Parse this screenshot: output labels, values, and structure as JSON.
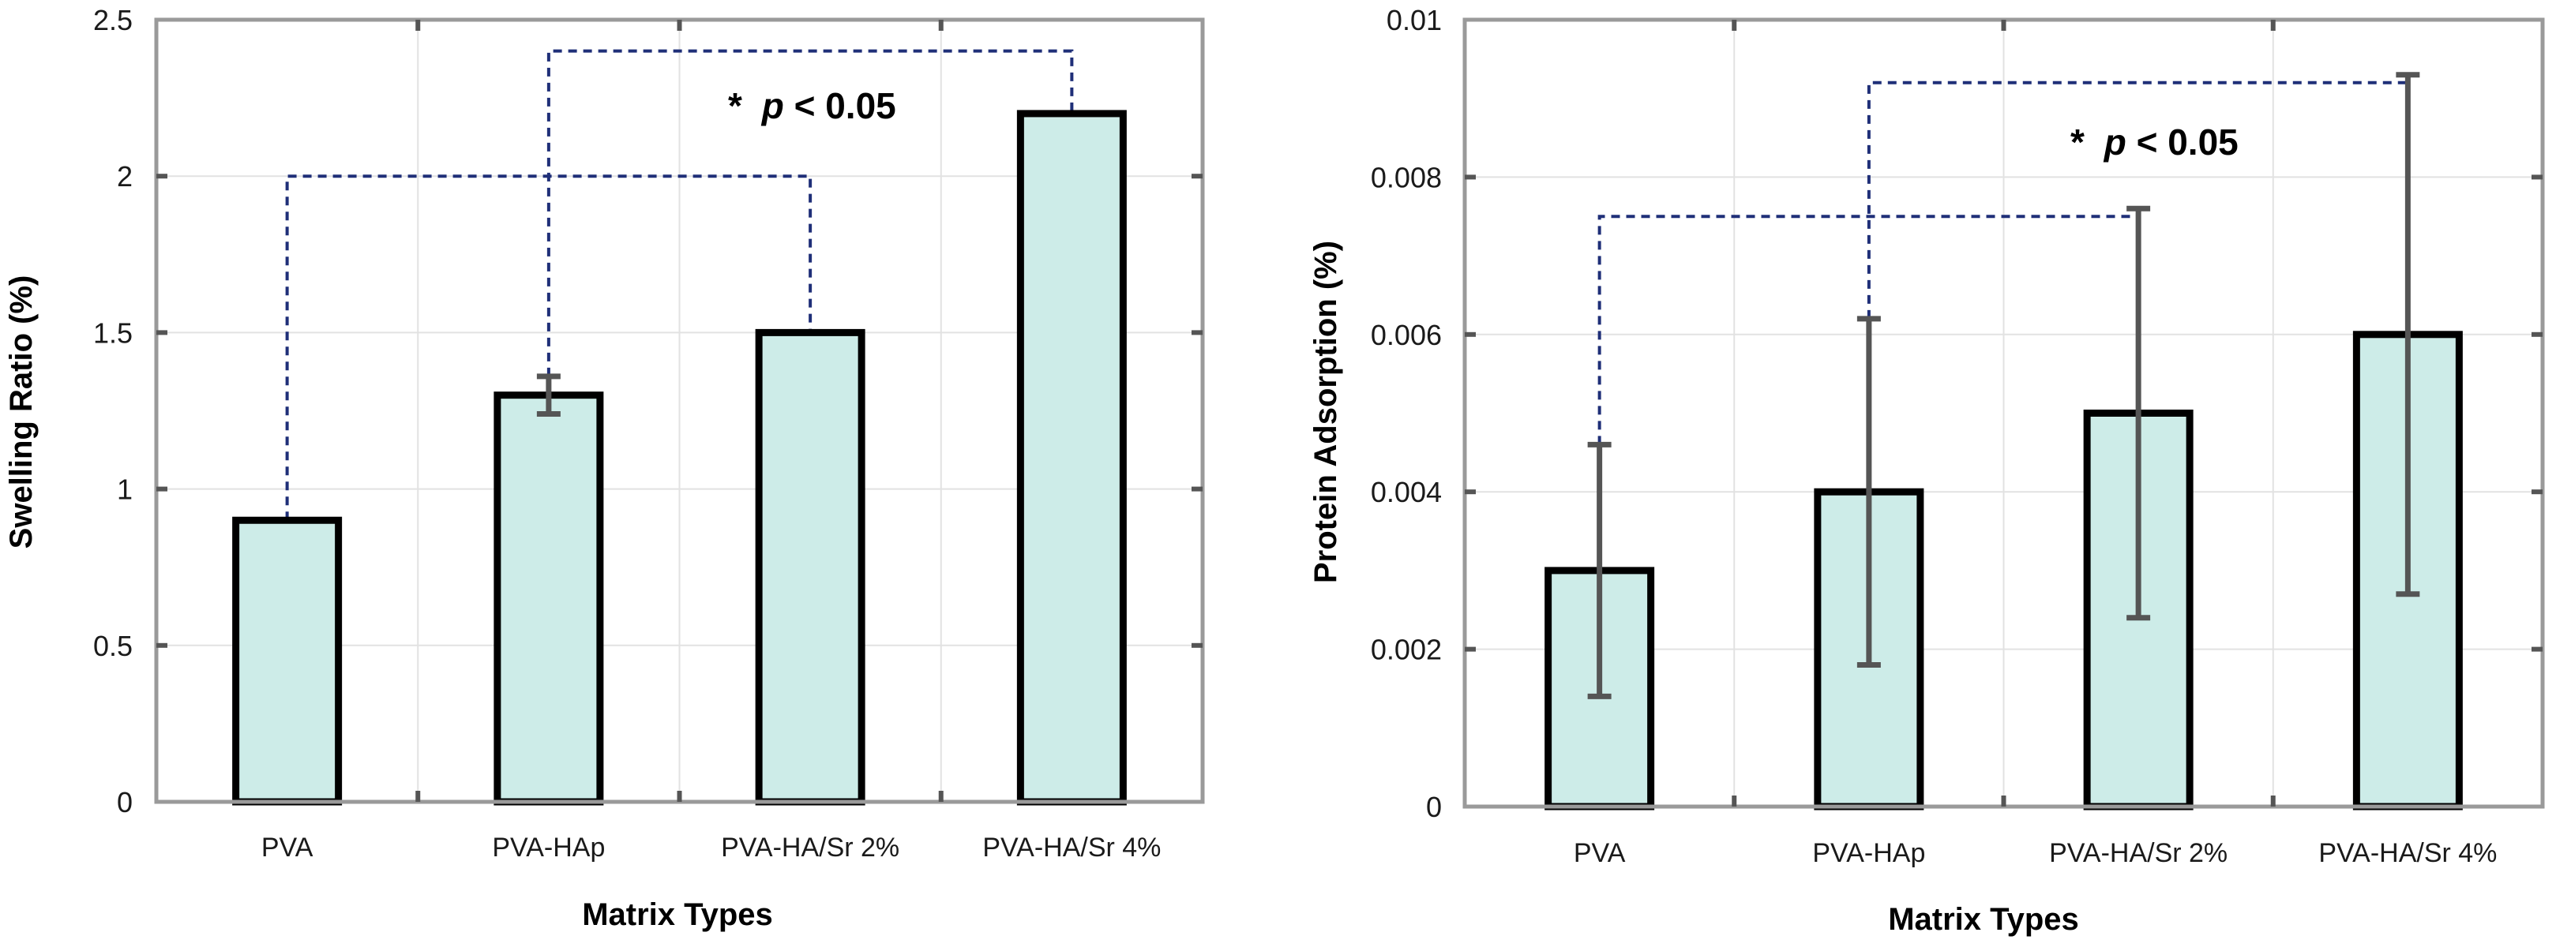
{
  "colors": {
    "bar_fill": "#cdece8",
    "bar_edge": "#000000",
    "error_bar": "#555555",
    "bracket": "#1f2f78",
    "grid": "#e2e2e2",
    "frame": "#9a9a9a",
    "tick_mark": "#555555"
  },
  "chart_data": [
    {
      "type": "bar",
      "categories": [
        "PVA",
        "PVA-HAp",
        "PVA-HA/Sr 2%",
        "PVA-HA/Sr 4%"
      ],
      "values": [
        0.9,
        1.3,
        1.5,
        2.2
      ],
      "errors": [
        0,
        0.06,
        0,
        0
      ],
      "title": "",
      "xlabel": "Matrix Types",
      "ylabel": "Swelling Ratio (%)",
      "ylim": [
        0,
        2.5
      ],
      "yticks": [
        0,
        0.5,
        1,
        1.5,
        2,
        2.5
      ],
      "ytick_labels": [
        "0",
        "0.5",
        "1",
        "1.5",
        "2",
        "2.5"
      ],
      "grid": true,
      "annotation": {
        "star": "*",
        "p": "p",
        "rest": "< 0.05"
      },
      "brackets": [
        {
          "from": 0,
          "to": 2,
          "level": 2.0
        },
        {
          "from": 1,
          "to": 3,
          "level": 2.4
        }
      ]
    },
    {
      "type": "bar",
      "categories": [
        "PVA",
        "PVA-HAp",
        "PVA-HA/Sr 2%",
        "PVA-HA/Sr 4%"
      ],
      "values": [
        0.003,
        0.004,
        0.005,
        0.006
      ],
      "errors": [
        0.0016,
        0.0022,
        0.0026,
        0.0033
      ],
      "title": "",
      "xlabel": "Matrix Types",
      "ylabel": "Protein Adsorption (%)",
      "ylim": [
        0,
        0.01
      ],
      "yticks": [
        0,
        0.002,
        0.004,
        0.006,
        0.008,
        0.01
      ],
      "ytick_labels": [
        "0",
        "0.002",
        "0.004",
        "0.006",
        "0.008",
        "0.01"
      ],
      "grid": true,
      "annotation": {
        "star": "*",
        "p": "p",
        "rest": "< 0.05"
      },
      "brackets": [
        {
          "from": 0,
          "to": 2,
          "level": 0.0075
        },
        {
          "from": 1,
          "to": 3,
          "level": 0.0092
        }
      ]
    }
  ]
}
